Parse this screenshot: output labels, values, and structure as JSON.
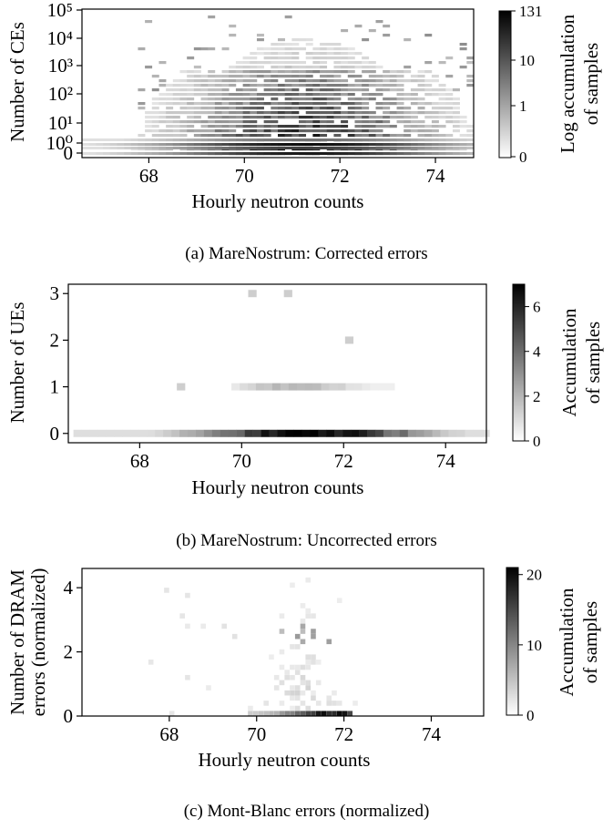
{
  "chart_data": [
    {
      "type": "heatmap",
      "title": "",
      "caption": "(a) MareNostrum: Corrected errors",
      "xlabel": "Hourly neutron counts",
      "ylabel": "Number of CEs",
      "xlim": [
        66.6,
        74.8
      ],
      "x_ticks": [
        "68",
        "70",
        "72",
        "74"
      ],
      "y_scale": "symlog",
      "y_ticks": [
        "0",
        "10⁰",
        "10¹",
        "10²",
        "10³",
        "10⁴",
        "10⁵"
      ],
      "colorbar_label": [
        "Log accumulation",
        "of samples"
      ],
      "colorbar_ticks": [
        "0",
        "1",
        "10",
        "131"
      ],
      "colorbar_max": 131,
      "colorbar_scale": "log",
      "grid": false,
      "density_summary": {
        "peak_x": 71.3,
        "core_x_range": [
          68.8,
          73.4
        ],
        "dense_rows": [
          "0",
          "10⁰",
          "10¹"
        ],
        "outlier_ceiling": "10⁴"
      }
    },
    {
      "type": "heatmap",
      "title": "",
      "caption": "(b) MareNostrum: Uncorrected errors",
      "xlabel": "Hourly neutron counts",
      "ylabel": "Number of UEs",
      "xlim": [
        66.6,
        74.8
      ],
      "ylim": [
        -0.2,
        3.2
      ],
      "x_ticks": [
        "68",
        "70",
        "72",
        "74"
      ],
      "y_ticks": [
        "0",
        "1",
        "2",
        "3"
      ],
      "colorbar_label": [
        "Accumulation",
        "of samples"
      ],
      "colorbar_ticks": [
        "0",
        "2",
        "4",
        "6"
      ],
      "colorbar_max": 7,
      "grid": false,
      "rows": [
        {
          "y": 0,
          "x_range": [
            66.7,
            74.7
          ],
          "peak_x": 71.3,
          "peak_value": 7
        },
        {
          "y": 1,
          "x_range": [
            69.8,
            72.9
          ],
          "peak_x": 71.0,
          "peak_value": 2
        },
        {
          "y": 2,
          "cells": [
            {
              "x": 72.1,
              "value": 1
            }
          ]
        },
        {
          "y": 3,
          "cells": [
            {
              "x": 70.2,
              "value": 1
            },
            {
              "x": 70.9,
              "value": 1
            }
          ]
        }
      ],
      "extra_cells": [
        {
          "x": 68.8,
          "y": 1,
          "value": 1
        }
      ]
    },
    {
      "type": "heatmap",
      "title": "",
      "caption": "(c) Mont-Blanc errors (normalized)",
      "xlabel": "Hourly neutron counts",
      "ylabel": [
        "Number of DRAM",
        "errors (normalized)"
      ],
      "xlim": [
        66.0,
        75.2
      ],
      "ylim": [
        0,
        4.6
      ],
      "x_ticks": [
        "68",
        "70",
        "72",
        "74"
      ],
      "y_ticks": [
        "0",
        "2",
        "4"
      ],
      "colorbar_label": [
        "Accumulation",
        "of samples"
      ],
      "colorbar_ticks": [
        "0",
        "10",
        "20"
      ],
      "colorbar_max": 21,
      "grid": false,
      "density_summary": {
        "peak_x": 71.6,
        "peak_y": 0.1,
        "peak_value": 21,
        "core_x_range": [
          70.0,
          72.0
        ],
        "max_y": 4.5
      }
    }
  ]
}
